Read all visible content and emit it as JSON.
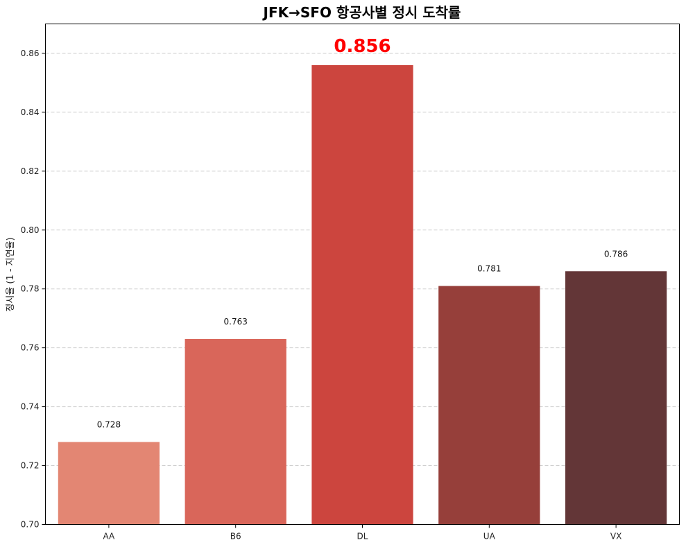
{
  "chart_data": {
    "type": "bar",
    "title": "JFK→SFO 항공사별 정시 도착률",
    "xlabel": "",
    "ylabel": "정시율 (1 - 지연율)",
    "categories": [
      "AA",
      "B6",
      "DL",
      "UA",
      "VX"
    ],
    "values": [
      0.728,
      0.763,
      0.856,
      0.781,
      0.786
    ],
    "value_labels": [
      "0.728",
      "0.763",
      "0.856",
      "0.781",
      "0.786"
    ],
    "highlight_index": 2,
    "highlight_label_color": "#ff0000",
    "bar_colors": [
      "#e38673",
      "#d9665a",
      "#cc453e",
      "#963f3a",
      "#633637"
    ],
    "ylim": [
      0.7,
      0.87
    ],
    "yticks": [
      0.7,
      0.72,
      0.74,
      0.76,
      0.78,
      0.8,
      0.82,
      0.84,
      0.86
    ],
    "ytick_labels": [
      "0.70",
      "0.72",
      "0.74",
      "0.76",
      "0.78",
      "0.80",
      "0.82",
      "0.84",
      "0.86"
    ],
    "grid": "y-dashed",
    "legend": "none"
  }
}
